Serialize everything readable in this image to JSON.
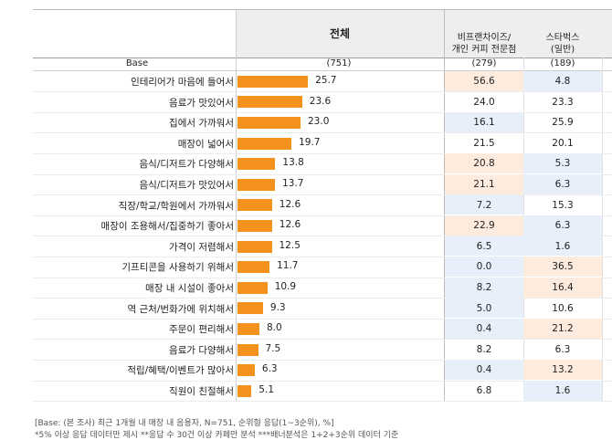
{
  "header": {
    "total": "전체",
    "col_franchise": "비프랜차이즈/\n개인 커피 전문점",
    "col_starbucks": "스타벅스\n(일반)"
  },
  "base_row": {
    "label": "Base",
    "total": "(751)",
    "franchise": "(279)",
    "starbucks": "(189)"
  },
  "colors": {
    "bar": "#F5921E",
    "highlight_high": "#FDEBDD",
    "highlight_low": "#E6EFFA",
    "header_bg": "#EEEEEE"
  },
  "chart_data": {
    "type": "bar",
    "categories": [
      "인테리어가 마음에 들어서",
      "음료가 맛있어서",
      "집에서 가까워서",
      "매장이 넓어서",
      "음식/디저트가 다양해서",
      "음식/디저트가 맛있어서",
      "직장/학교/학원에서 가까워서",
      "매장이 조용해서/집중하기 좋아서",
      "가격이 저렴해서",
      "기프티콘을 사용하기 위해서",
      "매장 내 시설이 좋아서",
      "역 근처/번화가에 위치해서",
      "주문이 편리해서",
      "음료가 다양해서",
      "적립/혜택/이벤트가 많아서",
      "직원이 친절해서"
    ],
    "values": [
      25.7,
      23.6,
      23.0,
      19.7,
      13.8,
      13.7,
      12.6,
      12.6,
      12.5,
      11.7,
      10.9,
      9.3,
      8.0,
      7.5,
      6.3,
      5.1
    ],
    "value_labels": [
      "25.7",
      "23.6",
      "23.0",
      "19.7",
      "13.8",
      "13.7",
      "12.6",
      "12.6",
      "12.5",
      "11.7",
      "10.9",
      "9.3",
      "8.0",
      "7.5",
      "6.3",
      "5.1"
    ],
    "table": {
      "franchise": {
        "values": [
          "56.6",
          "24.0",
          "16.1",
          "21.5",
          "20.8",
          "21.1",
          "7.2",
          "22.9",
          "6.5",
          "0.0",
          "8.2",
          "5.0",
          "0.4",
          "8.2",
          "0.4",
          "6.8"
        ],
        "highlight": [
          "high",
          "",
          "low",
          "",
          "high",
          "high",
          "low",
          "high",
          "low",
          "low",
          "low",
          "low",
          "low",
          "",
          "low",
          ""
        ]
      },
      "starbucks": {
        "values": [
          "4.8",
          "23.3",
          "25.9",
          "20.1",
          "5.3",
          "6.3",
          "15.3",
          "6.3",
          "1.6",
          "36.5",
          "16.4",
          "10.6",
          "21.2",
          "6.3",
          "13.2",
          "1.6"
        ],
        "highlight": [
          "low",
          "",
          "",
          "",
          "low",
          "low",
          "",
          "low",
          "low",
          "high",
          "high",
          "",
          "high",
          "",
          "high",
          "low"
        ]
      }
    }
  },
  "footnotes": {
    "line1": "[Base: (본 조사) 최근 1개월 내 매장 내 음용자, N=751, 순위형 응답(1~3순위), %]",
    "line2": "*5% 이상 응답 데이터만 제시 **응답 수 30건 이상 카페만 분석 ***배너분석은 1+2+3순위 데이터 기준"
  }
}
